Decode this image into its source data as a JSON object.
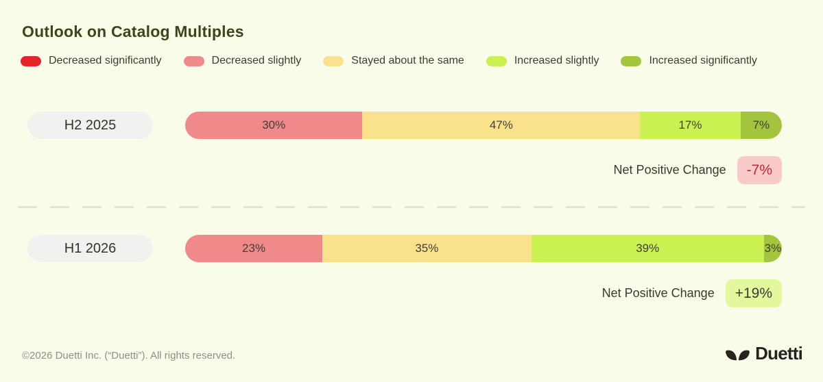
{
  "title": "Outlook on Catalog Multiples",
  "colors": {
    "background": "#fafcea",
    "title_text": "#3a471d",
    "divider": "#e3e3da",
    "row_pill_bg": "#f1f1ef",
    "footer_text": "#8f8f88",
    "logo": "#272420"
  },
  "legend": [
    {
      "label": "Decreased significantly",
      "color": "#e62428"
    },
    {
      "label": "Decreased slightly",
      "color": "#f0898a"
    },
    {
      "label": "Stayed about the same",
      "color": "#fae28c"
    },
    {
      "label": "Increased slightly",
      "color": "#cbf052"
    },
    {
      "label": "Increased significantly",
      "color": "#a4c43d"
    }
  ],
  "rows": [
    {
      "label": "H2 2025",
      "segments": [
        {
          "name": "Decreased slightly",
          "text": "30%",
          "value": 30,
          "color": "#f0898a"
        },
        {
          "name": "Stayed about the same",
          "text": "47%",
          "value": 47,
          "color": "#fae28c"
        },
        {
          "name": "Increased slightly",
          "text": "17%",
          "value": 17,
          "color": "#cbf052"
        },
        {
          "name": "Increased significantly",
          "text": "7%",
          "value": 7,
          "color": "#a4c43d"
        }
      ],
      "net": {
        "label": "Net Positive Change",
        "value": "-7%",
        "badge_bg": "#f9caca",
        "badge_text": "#c3282d"
      }
    },
    {
      "label": "H1 2026",
      "segments": [
        {
          "name": "Decreased slightly",
          "text": "23%",
          "value": 23,
          "color": "#f0898a"
        },
        {
          "name": "Stayed about the same",
          "text": "35%",
          "value": 35,
          "color": "#fae28c"
        },
        {
          "name": "Increased slightly",
          "text": "39%",
          "value": 39,
          "color": "#cbf052"
        },
        {
          "name": "Increased significantly",
          "text": "3%",
          "value": 3,
          "color": "#a4c43d"
        }
      ],
      "net": {
        "label": "Net Positive Change",
        "value": "+19%",
        "badge_bg": "#e3f79d",
        "badge_text": "#3c3b30"
      }
    }
  ],
  "chart_data": {
    "type": "bar",
    "variant": "horizontal-stacked-100",
    "title": "Outlook on Catalog Multiples",
    "categories": [
      "H2 2025",
      "H1 2026"
    ],
    "series": [
      {
        "name": "Decreased significantly",
        "color": "#e62428",
        "values": [
          0,
          0
        ]
      },
      {
        "name": "Decreased slightly",
        "color": "#f0898a",
        "values": [
          30,
          23
        ]
      },
      {
        "name": "Stayed about the same",
        "color": "#fae28c",
        "values": [
          47,
          35
        ]
      },
      {
        "name": "Increased slightly",
        "color": "#cbf052",
        "values": [
          17,
          39
        ]
      },
      {
        "name": "Increased significantly",
        "color": "#a4c43d",
        "values": [
          7,
          3
        ]
      }
    ],
    "annotations": [
      {
        "category": "H2 2025",
        "label": "Net Positive Change",
        "value": "-7%"
      },
      {
        "category": "H1 2026",
        "label": "Net Positive Change",
        "value": "+19%"
      }
    ],
    "value_format": "percent",
    "legend_position": "top",
    "grid": false
  },
  "footer": {
    "copyright": "©2026 Duetti Inc. (“Duetti”). All rights reserved.",
    "brand": "Duetti"
  }
}
